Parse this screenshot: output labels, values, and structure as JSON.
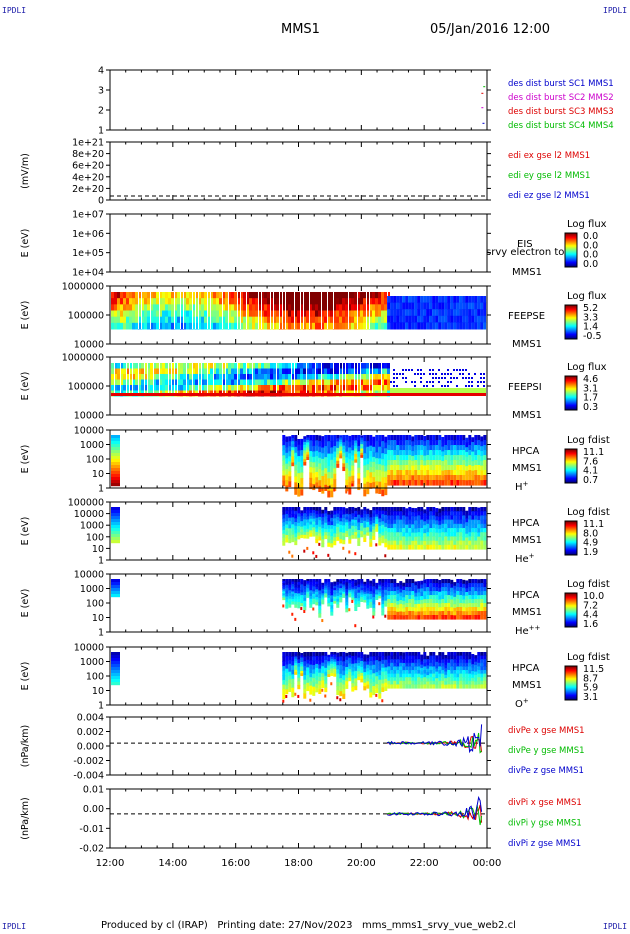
{
  "header": {
    "corner_tl": "IPDLI",
    "corner_tr": "IPDLI",
    "corner_bl": "IPDLI",
    "corner_br": "IPDLI",
    "spacecraft": "MMS1",
    "datetime": "05/Jan/2016 12:00"
  },
  "footer": {
    "text": "Produced by cl (IRAP)   Printing date: 27/Nov/2023   mms_mms1_srvy_vue_web2.cl"
  },
  "colors": {
    "mms1": "#0000cc",
    "mms2": "#cc00cc",
    "mms3": "#dd0000",
    "mms4": "#00bb00"
  },
  "time_axis": {
    "ticks": [
      "12:00",
      "14:00",
      "16:00",
      "18:00",
      "20:00",
      "22:00",
      "00:00"
    ]
  },
  "chart_data": [
    {
      "id": "burst",
      "type": "scatter",
      "yticks": [
        "4",
        "3",
        "2",
        "1"
      ],
      "legend": [
        {
          "label": "des dist burst SC1 MMS1",
          "color": "#0000cc"
        },
        {
          "label": "des dist burst SC2 MMS2",
          "color": "#cc00cc"
        },
        {
          "label": "des dist burst SC3 MMS3",
          "color": "#dd0000"
        },
        {
          "label": "des dist burst SC4 MMS4",
          "color": "#00bb00"
        }
      ]
    },
    {
      "id": "edi",
      "type": "line",
      "ylabel": "(mV/m)",
      "yticks": [
        "1e+21",
        "8e+20",
        "6e+20",
        "4e+20",
        "2e+20",
        "0"
      ],
      "legend": [
        {
          "label": "edi ex gse l2 MMS1",
          "color": "#dd0000"
        },
        {
          "label": "edi ey gse l2 MMS1",
          "color": "#00bb00"
        },
        {
          "label": "edi ez gse l2 MMS1",
          "color": "#0000cc"
        }
      ]
    },
    {
      "id": "eis",
      "type": "heatmap",
      "ylabel": "E (eV)",
      "yticks": [
        "1e+07",
        "1e+06",
        "1e+05",
        "1e+04"
      ],
      "right_labels": [
        "EIS",
        "srvy electron to",
        "MMS1"
      ],
      "cbar_title": "Log flux",
      "cbar_ticks": [
        "0.0",
        "0.0",
        "0.0",
        "0.0"
      ]
    },
    {
      "id": "feepse",
      "type": "heatmap",
      "ylabel": "E (eV)",
      "yticks": [
        "1000000",
        "100000",
        "10000"
      ],
      "right_labels": [
        "FEEPSE",
        "MMS1"
      ],
      "cbar_title": "Log flux",
      "cbar_ticks": [
        "5.2",
        "3.3",
        "1.4",
        "-0.5"
      ]
    },
    {
      "id": "feepsi",
      "type": "heatmap",
      "ylabel": "E (eV)",
      "yticks": [
        "1000000",
        "100000",
        "10000"
      ],
      "right_labels": [
        "FEEPSI",
        "MMS1"
      ],
      "cbar_title": "Log flux",
      "cbar_ticks": [
        "4.6",
        "3.1",
        "1.7",
        "0.3"
      ]
    },
    {
      "id": "hpca_h",
      "type": "heatmap",
      "ylabel": "E (eV)",
      "yticks": [
        "10000",
        "1000",
        "100",
        "10",
        "1"
      ],
      "right_labels": [
        "HPCA",
        "MMS1",
        "H+"
      ],
      "cbar_title": "Log fdist",
      "cbar_ticks": [
        "11.1",
        "7.6",
        "4.1",
        "0.7"
      ]
    },
    {
      "id": "hpca_he",
      "type": "heatmap",
      "ylabel": "E (eV)",
      "yticks": [
        "100000",
        "10000",
        "1000",
        "100",
        "10",
        "1"
      ],
      "right_labels": [
        "HPCA",
        "MMS1",
        "He+"
      ],
      "cbar_title": "Log fdist",
      "cbar_ticks": [
        "11.1",
        "8.0",
        "4.9",
        "1.9"
      ]
    },
    {
      "id": "hpca_hepp",
      "type": "heatmap",
      "ylabel": "E (eV)",
      "yticks": [
        "10000",
        "1000",
        "100",
        "10",
        "1"
      ],
      "right_labels": [
        "HPCA",
        "MMS1",
        "He++"
      ],
      "cbar_title": "Log fdist",
      "cbar_ticks": [
        "10.0",
        "7.2",
        "4.4",
        "1.6"
      ]
    },
    {
      "id": "hpca_o",
      "type": "heatmap",
      "ylabel": "E (eV)",
      "yticks": [
        "10000",
        "1000",
        "100",
        "10",
        "1"
      ],
      "right_labels": [
        "HPCA",
        "MMS1",
        "O+"
      ],
      "cbar_title": "Log fdist",
      "cbar_ticks": [
        "11.5",
        "8.7",
        "5.9",
        "3.1"
      ]
    },
    {
      "id": "divpe",
      "type": "line",
      "ylabel": "(nPa/km)",
      "yticks": [
        "0.004",
        "0.002",
        "0.000",
        "-0.002",
        "-0.004"
      ],
      "ylim": [
        -0.0055,
        0.0045
      ],
      "legend": [
        {
          "label": "divPe x gse MMS1",
          "color": "#dd0000"
        },
        {
          "label": "divPe y gse MMS1",
          "color": "#00bb00"
        },
        {
          "label": "divPe z gse MMS1",
          "color": "#0000cc"
        }
      ]
    },
    {
      "id": "divpi",
      "type": "line",
      "ylabel": "(nPa/km)",
      "yticks": [
        "0.01",
        "0.00",
        "-0.01",
        "-0.02"
      ],
      "ylim": [
        -0.022,
        0.016
      ],
      "legend": [
        {
          "label": "divPi x gse MMS1",
          "color": "#dd0000"
        },
        {
          "label": "divPi y gse MMS1",
          "color": "#00bb00"
        },
        {
          "label": "divPi z gse MMS1",
          "color": "#0000cc"
        }
      ]
    }
  ]
}
